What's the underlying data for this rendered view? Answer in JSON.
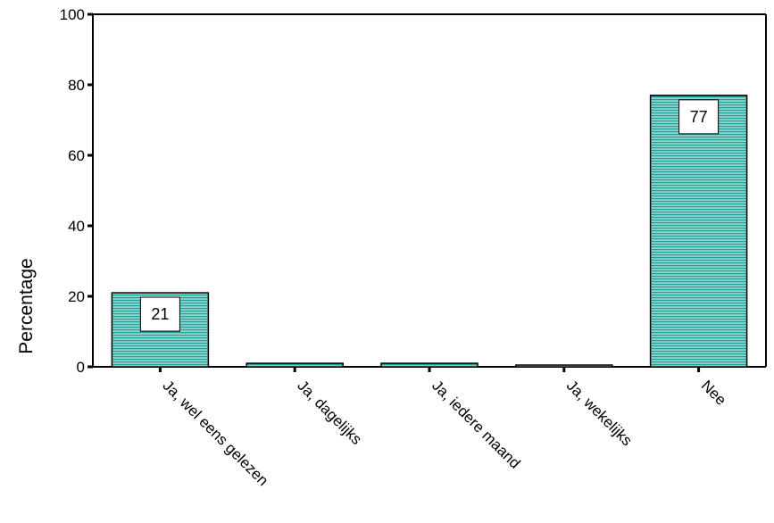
{
  "chart_data": {
    "type": "bar",
    "title": "",
    "xlabel": "",
    "ylabel": "Percentage",
    "ylim": [
      0,
      100
    ],
    "yticks": [
      0,
      20,
      40,
      60,
      80,
      100
    ],
    "grid": false,
    "categories": [
      "Ja, wel eens gelezen",
      "Ja, dagelijks",
      "Ja, iedere maand",
      "Ja, wekelijks",
      "Nee"
    ],
    "values": [
      21,
      1,
      1,
      0.5,
      77
    ],
    "data_labels": [
      "21",
      null,
      null,
      null,
      "77"
    ],
    "bar_fill": "#1fa39a",
    "bar_stripe": "#ffffff",
    "bar_border": "#000000"
  }
}
